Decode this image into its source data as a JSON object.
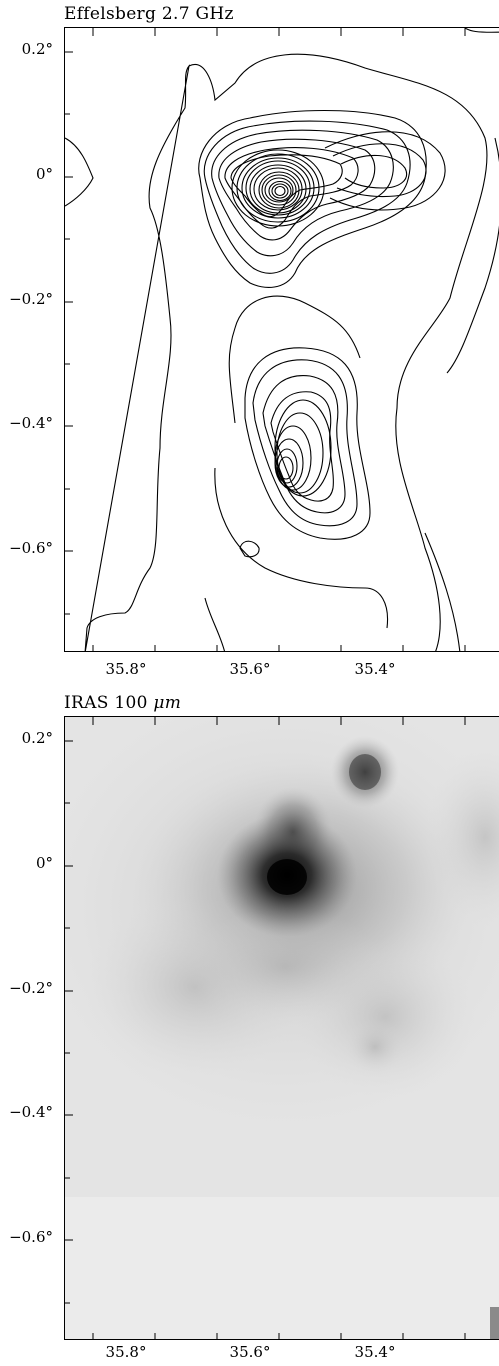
{
  "figure": {
    "panels": [
      {
        "title": "Effelsberg 2.7 GHz",
        "type": "contour",
        "x_ticks": [
          "35.8°",
          "35.6°",
          "35.4°"
        ],
        "y_ticks": [
          "0.2°",
          "0°",
          "−0.2°",
          "−0.4°",
          "−0.6°"
        ]
      },
      {
        "title": "IRAS 100 ",
        "title_unit": "μm",
        "type": "grayscale-image",
        "x_ticks": [
          "35.8°",
          "35.6°",
          "35.4°"
        ],
        "y_ticks": [
          "0.2°",
          "0°",
          "−0.2°",
          "−0.4°",
          "−0.6°"
        ]
      }
    ]
  },
  "chart_data": [
    {
      "type": "heatmap",
      "title": "Effelsberg 2.7 GHz",
      "xlabel": "",
      "ylabel": "",
      "x_ticks": [
        35.8,
        35.6,
        35.4
      ],
      "y_ticks": [
        0.2,
        0.0,
        -0.2,
        -0.4,
        -0.6
      ],
      "xlim": [
        35.94,
        35.28
      ],
      "ylim": [
        -0.76,
        0.24
      ],
      "representation": "contours",
      "peaks": [
        {
          "l": 35.59,
          "b": -0.03
        },
        {
          "l": 35.58,
          "b": -0.47
        }
      ]
    },
    {
      "type": "heatmap",
      "title": "IRAS 100 μm",
      "xlabel": "",
      "ylabel": "",
      "x_ticks": [
        35.8,
        35.6,
        35.4
      ],
      "y_ticks": [
        0.2,
        0.0,
        -0.2,
        -0.4,
        -0.6
      ],
      "xlim": [
        35.94,
        35.28
      ],
      "ylim": [
        -0.76,
        0.24
      ],
      "representation": "grayscale",
      "peaks": [
        {
          "l": 35.58,
          "b": -0.02
        },
        {
          "l": 35.46,
          "b": 0.13
        }
      ]
    }
  ]
}
